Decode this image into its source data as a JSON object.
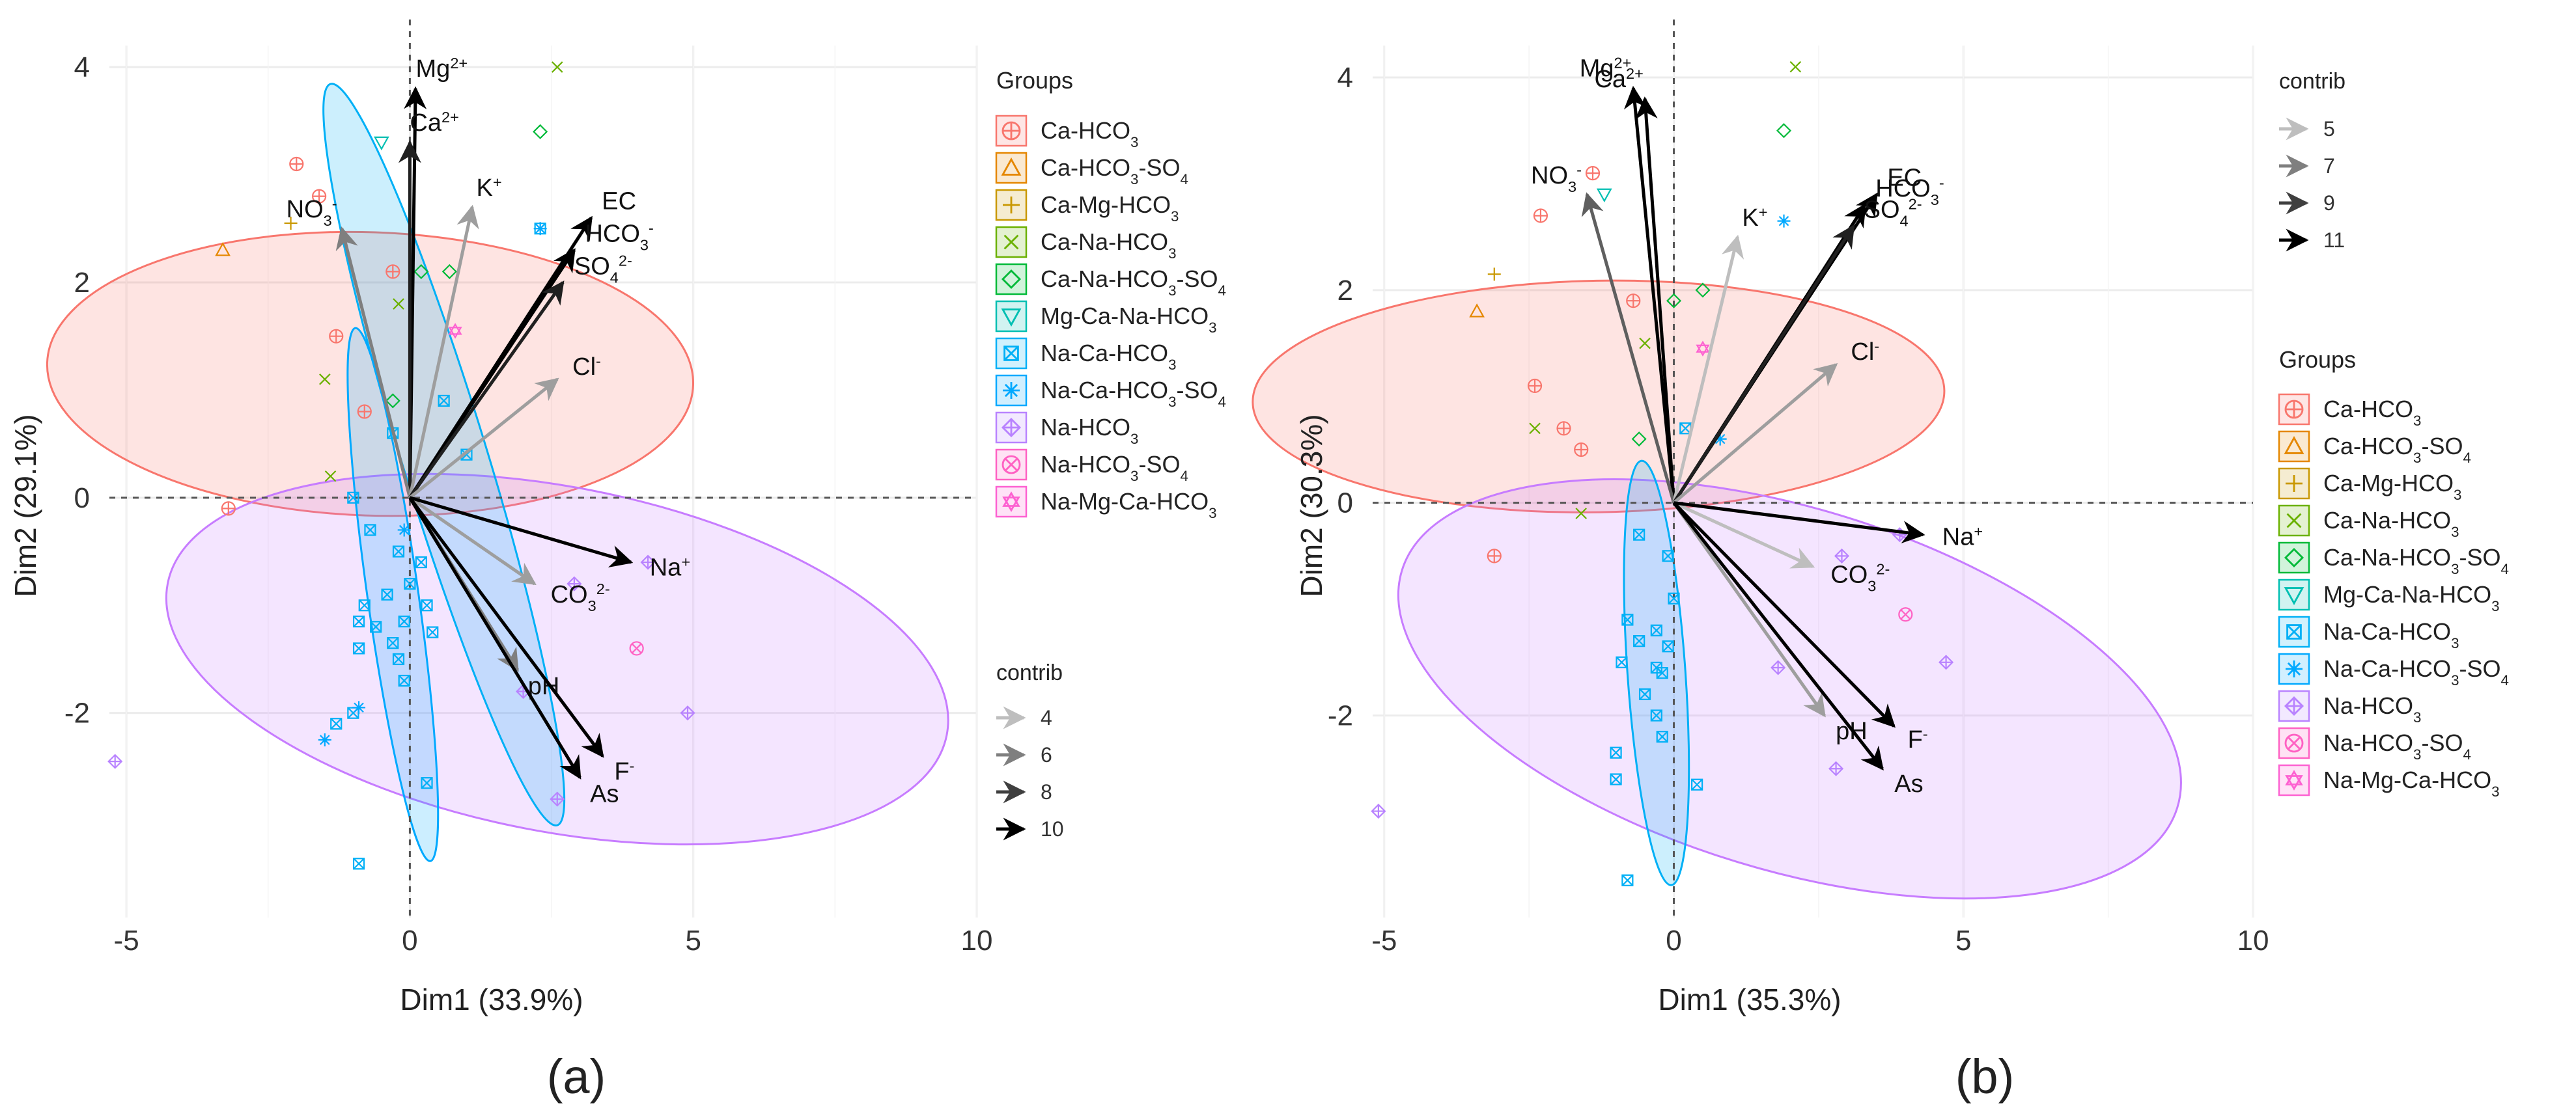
{
  "chart_data": [
    {
      "type": "scatter",
      "subtype": "pca-biplot",
      "panel_label": "(a)",
      "xlabel": "Dim1 (33.9%)",
      "ylabel": "Dim2 (29.1%)",
      "xlim": [
        -5.3,
        10
      ],
      "ylim": [
        -3.9,
        4.2
      ],
      "x_ticks": [
        "-5",
        "0",
        "5",
        "10"
      ],
      "y_ticks": [
        "-2",
        "0",
        "2",
        "4"
      ],
      "groups_title": "Groups",
      "contrib_title": "contrib",
      "contrib_levels": [
        "4",
        "6",
        "8",
        "10"
      ],
      "vectors": [
        {
          "label": "Mg2+",
          "x": 0.1,
          "y": 3.8,
          "contrib": 10
        },
        {
          "label": "Ca2+",
          "x": 0.0,
          "y": 3.3,
          "contrib": 9
        },
        {
          "label": "NO3-",
          "x": -1.2,
          "y": 2.5,
          "contrib": 6
        },
        {
          "label": "K+",
          "x": 1.1,
          "y": 2.7,
          "contrib": 5
        },
        {
          "label": "EC",
          "x": 3.2,
          "y": 2.6,
          "contrib": 10
        },
        {
          "label": "HCO3-",
          "x": 2.9,
          "y": 2.3,
          "contrib": 10
        },
        {
          "label": "SO42-",
          "x": 2.7,
          "y": 2.0,
          "contrib": 9
        },
        {
          "label": "Cl-",
          "x": 2.6,
          "y": 1.1,
          "contrib": 5
        },
        {
          "label": "CO32-",
          "x": 2.2,
          "y": -0.8,
          "contrib": 5
        },
        {
          "label": "Na+",
          "x": 3.9,
          "y": -0.6,
          "contrib": 10
        },
        {
          "label": "pH",
          "x": 1.9,
          "y": -1.6,
          "contrib": 6
        },
        {
          "label": "F-",
          "x": 3.4,
          "y": -2.4,
          "contrib": 10
        },
        {
          "label": "As",
          "x": 3.0,
          "y": -2.6,
          "contrib": 10
        }
      ],
      "ellipses": [
        {
          "group": "Ca-HCO3",
          "cx": -0.7,
          "cy": 1.15,
          "rx": 2.5,
          "ry": 3.0,
          "angle": -88
        },
        {
          "group": "Na-HCO3",
          "cx": 2.6,
          "cy": -1.5,
          "rx": 7.0,
          "ry": 1.6,
          "angle": 11
        },
        {
          "group": "Na-Ca-HCO3",
          "cx": 0.6,
          "cy": 0.4,
          "rx": 0.75,
          "ry": 3.6,
          "angle": -17
        },
        {
          "group": "Na-Ca-HCO3-SO4",
          "cx": -0.3,
          "cy": -0.9,
          "rx": 0.45,
          "ry": 2.5,
          "angle": -8
        }
      ],
      "points": [
        {
          "group": "Ca-HCO3",
          "x": -2.0,
          "y": 3.1
        },
        {
          "group": "Ca-HCO3",
          "x": -1.6,
          "y": 2.8
        },
        {
          "group": "Ca-HCO3",
          "x": -0.3,
          "y": 2.1
        },
        {
          "group": "Ca-HCO3",
          "x": -1.3,
          "y": 1.5
        },
        {
          "group": "Ca-HCO3",
          "x": -0.8,
          "y": 0.8
        },
        {
          "group": "Ca-HCO3",
          "x": -3.2,
          "y": -0.1
        },
        {
          "group": "Ca-HCO3-SO4",
          "x": -3.3,
          "y": 2.3
        },
        {
          "group": "Ca-Mg-HCO3",
          "x": -2.1,
          "y": 2.55
        },
        {
          "group": "Ca-Na-HCO3",
          "x": 2.6,
          "y": 4.0
        },
        {
          "group": "Ca-Na-HCO3",
          "x": -1.5,
          "y": 1.1
        },
        {
          "group": "Ca-Na-HCO3",
          "x": -1.4,
          "y": 0.2
        },
        {
          "group": "Ca-Na-HCO3",
          "x": -0.2,
          "y": 1.8
        },
        {
          "group": "Ca-Na-HCO3-SO4",
          "x": 2.3,
          "y": 3.4
        },
        {
          "group": "Ca-Na-HCO3-SO4",
          "x": 0.7,
          "y": 2.1
        },
        {
          "group": "Ca-Na-HCO3-SO4",
          "x": 0.2,
          "y": 2.1
        },
        {
          "group": "Ca-Na-HCO3-SO4",
          "x": -0.3,
          "y": 0.9
        },
        {
          "group": "Mg-Ca-Na-HCO3",
          "x": -0.5,
          "y": 3.3
        },
        {
          "group": "Na-Ca-HCO3",
          "x": 2.3,
          "y": 2.5
        },
        {
          "group": "Na-Ca-HCO3",
          "x": 0.6,
          "y": 0.9
        },
        {
          "group": "Na-Ca-HCO3",
          "x": 1.0,
          "y": 0.4
        },
        {
          "group": "Na-Ca-HCO3",
          "x": -0.3,
          "y": 0.6
        },
        {
          "group": "Na-Ca-HCO3",
          "x": -1.0,
          "y": 0.0
        },
        {
          "group": "Na-Ca-HCO3",
          "x": -0.7,
          "y": -0.3
        },
        {
          "group": "Na-Ca-HCO3",
          "x": -0.2,
          "y": -0.5
        },
        {
          "group": "Na-Ca-HCO3",
          "x": 0.2,
          "y": -0.6
        },
        {
          "group": "Na-Ca-HCO3",
          "x": 0.0,
          "y": -0.8
        },
        {
          "group": "Na-Ca-HCO3",
          "x": -0.4,
          "y": -0.9
        },
        {
          "group": "Na-Ca-HCO3",
          "x": 0.3,
          "y": -1.0
        },
        {
          "group": "Na-Ca-HCO3",
          "x": -0.8,
          "y": -1.0
        },
        {
          "group": "Na-Ca-HCO3",
          "x": -0.1,
          "y": -1.15
        },
        {
          "group": "Na-Ca-HCO3",
          "x": -0.6,
          "y": -1.2
        },
        {
          "group": "Na-Ca-HCO3",
          "x": 0.4,
          "y": -1.25
        },
        {
          "group": "Na-Ca-HCO3",
          "x": -0.3,
          "y": -1.35
        },
        {
          "group": "Na-Ca-HCO3",
          "x": -0.9,
          "y": -1.4
        },
        {
          "group": "Na-Ca-HCO3",
          "x": -0.2,
          "y": -1.5
        },
        {
          "group": "Na-Ca-HCO3",
          "x": -0.1,
          "y": -1.7
        },
        {
          "group": "Na-Ca-HCO3",
          "x": -1.0,
          "y": -2.0
        },
        {
          "group": "Na-Ca-HCO3",
          "x": -1.3,
          "y": -2.1
        },
        {
          "group": "Na-Ca-HCO3",
          "x": 0.3,
          "y": -2.65
        },
        {
          "group": "Na-Ca-HCO3",
          "x": -0.9,
          "y": -3.4
        },
        {
          "group": "Na-Ca-HCO3",
          "x": -0.9,
          "y": -1.15
        },
        {
          "group": "Na-Ca-HCO3-SO4",
          "x": 2.3,
          "y": 2.5
        },
        {
          "group": "Na-Ca-HCO3-SO4",
          "x": -0.1,
          "y": -0.3
        },
        {
          "group": "Na-Ca-HCO3-SO4",
          "x": -0.9,
          "y": -1.95
        },
        {
          "group": "Na-Ca-HCO3-SO4",
          "x": -1.5,
          "y": -2.25
        },
        {
          "group": "Na-HCO3",
          "x": 4.2,
          "y": -0.6
        },
        {
          "group": "Na-HCO3",
          "x": 2.9,
          "y": -0.8
        },
        {
          "group": "Na-HCO3",
          "x": 2.0,
          "y": -1.8
        },
        {
          "group": "Na-HCO3",
          "x": 4.9,
          "y": -2.0
        },
        {
          "group": "Na-HCO3",
          "x": 2.6,
          "y": -2.8
        },
        {
          "group": "Na-HCO3",
          "x": -5.2,
          "y": -2.45
        },
        {
          "group": "Na-HCO3-SO4",
          "x": 4.0,
          "y": -1.4
        },
        {
          "group": "Na-Mg-Ca-HCO3",
          "x": 0.8,
          "y": 1.55
        }
      ]
    },
    {
      "type": "scatter",
      "subtype": "pca-biplot",
      "panel_label": "(b)",
      "xlabel": "Dim1 (35.3%)",
      "ylabel": "Dim2 (30.3%)",
      "xlim": [
        -5.2,
        10
      ],
      "ylim": [
        -3.9,
        4.3
      ],
      "x_ticks": [
        "-5",
        "0",
        "5",
        "10"
      ],
      "y_ticks": [
        "-2",
        "0",
        "2",
        "4"
      ],
      "groups_title": "Groups",
      "contrib_title": "contrib",
      "contrib_levels": [
        "5",
        "7",
        "9",
        "11"
      ],
      "vectors": [
        {
          "label": "Mg2+",
          "x": -0.7,
          "y": 3.9,
          "contrib": 11
        },
        {
          "label": "Ca2+",
          "x": -0.5,
          "y": 3.8,
          "contrib": 11
        },
        {
          "label": "NO3-",
          "x": -1.5,
          "y": 2.9,
          "contrib": 8
        },
        {
          "label": "K+",
          "x": 1.1,
          "y": 2.5,
          "contrib": 5
        },
        {
          "label": "EC",
          "x": 3.5,
          "y": 2.9,
          "contrib": 11
        },
        {
          "label": "HCO3-",
          "x": 3.3,
          "y": 2.8,
          "contrib": 11
        },
        {
          "label": "SO42-",
          "x": 3.1,
          "y": 2.6,
          "contrib": 10
        },
        {
          "label": "Cl-",
          "x": 2.8,
          "y": 1.3,
          "contrib": 6
        },
        {
          "label": "CO32-",
          "x": 2.4,
          "y": -0.6,
          "contrib": 5
        },
        {
          "label": "Na+",
          "x": 4.3,
          "y": -0.3,
          "contrib": 11
        },
        {
          "label": "pH",
          "x": 2.6,
          "y": -2.0,
          "contrib": 6
        },
        {
          "label": "F-",
          "x": 3.8,
          "y": -2.1,
          "contrib": 11
        },
        {
          "label": "As",
          "x": 3.6,
          "y": -2.5,
          "contrib": 11
        }
      ],
      "ellipses": [
        {
          "group": "Ca-HCO3",
          "cx": -1.3,
          "cy": 1.0,
          "rx": 2.0,
          "ry": 3.25,
          "angle": -91
        },
        {
          "group": "Na-HCO3",
          "cx": 2.0,
          "cy": -1.75,
          "rx": 7.0,
          "ry": 1.7,
          "angle": 17
        },
        {
          "group": "Na-Ca-HCO3",
          "cx": -0.3,
          "cy": -1.6,
          "rx": 0.5,
          "ry": 2.0,
          "angle": -4
        }
      ],
      "points": [
        {
          "group": "Ca-HCO3",
          "x": -1.4,
          "y": 3.1
        },
        {
          "group": "Ca-HCO3",
          "x": -2.3,
          "y": 2.7
        },
        {
          "group": "Ca-HCO3",
          "x": -0.7,
          "y": 1.9
        },
        {
          "group": "Ca-HCO3",
          "x": -2.4,
          "y": 1.1
        },
        {
          "group": "Ca-HCO3",
          "x": -1.9,
          "y": 0.7
        },
        {
          "group": "Ca-HCO3",
          "x": -1.6,
          "y": 0.5
        },
        {
          "group": "Ca-HCO3",
          "x": -3.1,
          "y": -0.5
        },
        {
          "group": "Ca-HCO3-SO4",
          "x": -3.4,
          "y": 1.8
        },
        {
          "group": "Ca-Mg-HCO3",
          "x": -3.1,
          "y": 2.15
        },
        {
          "group": "Ca-Na-HCO3",
          "x": 2.1,
          "y": 4.1
        },
        {
          "group": "Ca-Na-HCO3",
          "x": -0.5,
          "y": 1.5
        },
        {
          "group": "Ca-Na-HCO3",
          "x": -2.4,
          "y": 0.7
        },
        {
          "group": "Ca-Na-HCO3",
          "x": -1.6,
          "y": -0.1
        },
        {
          "group": "Ca-Na-HCO3-SO4",
          "x": 1.9,
          "y": 3.5
        },
        {
          "group": "Ca-Na-HCO3-SO4",
          "x": 0.5,
          "y": 2.0
        },
        {
          "group": "Ca-Na-HCO3-SO4",
          "x": 0.0,
          "y": 1.9
        },
        {
          "group": "Ca-Na-HCO3-SO4",
          "x": -0.6,
          "y": 0.6
        },
        {
          "group": "Mg-Ca-Na-HCO3",
          "x": -1.2,
          "y": 2.9
        },
        {
          "group": "Na-Ca-HCO3",
          "x": 0.2,
          "y": 0.7
        },
        {
          "group": "Na-Ca-HCO3",
          "x": -0.6,
          "y": -0.3
        },
        {
          "group": "Na-Ca-HCO3",
          "x": -0.1,
          "y": -0.5
        },
        {
          "group": "Na-Ca-HCO3",
          "x": 0.0,
          "y": -0.9
        },
        {
          "group": "Na-Ca-HCO3",
          "x": -0.8,
          "y": -1.1
        },
        {
          "group": "Na-Ca-HCO3",
          "x": -0.3,
          "y": -1.2
        },
        {
          "group": "Na-Ca-HCO3",
          "x": -0.6,
          "y": -1.3
        },
        {
          "group": "Na-Ca-HCO3",
          "x": -0.1,
          "y": -1.35
        },
        {
          "group": "Na-Ca-HCO3",
          "x": -0.9,
          "y": -1.5
        },
        {
          "group": "Na-Ca-HCO3",
          "x": -1.0,
          "y": -2.35
        },
        {
          "group": "Na-Ca-HCO3",
          "x": -1.0,
          "y": -2.6
        },
        {
          "group": "Na-Ca-HCO3",
          "x": 0.4,
          "y": -2.65
        },
        {
          "group": "Na-Ca-HCO3",
          "x": -0.8,
          "y": -3.55
        },
        {
          "group": "Na-Ca-HCO3",
          "x": -0.2,
          "y": -1.6
        },
        {
          "group": "Na-Ca-HCO3",
          "x": -0.3,
          "y": -2.0
        },
        {
          "group": "Na-Ca-HCO3",
          "x": -0.2,
          "y": -2.2
        },
        {
          "group": "Na-Ca-HCO3",
          "x": -0.5,
          "y": -1.8
        },
        {
          "group": "Na-Ca-HCO3",
          "x": -0.3,
          "y": -1.55
        },
        {
          "group": "Na-Ca-HCO3-SO4",
          "x": 1.9,
          "y": 2.65
        },
        {
          "group": "Na-Ca-HCO3-SO4",
          "x": 0.8,
          "y": 0.6
        },
        {
          "group": "Na-HCO3",
          "x": 3.9,
          "y": -0.3
        },
        {
          "group": "Na-HCO3",
          "x": 2.9,
          "y": -0.5
        },
        {
          "group": "Na-HCO3",
          "x": 1.8,
          "y": -1.55
        },
        {
          "group": "Na-HCO3",
          "x": 4.7,
          "y": -1.5
        },
        {
          "group": "Na-HCO3",
          "x": 2.8,
          "y": -2.5
        },
        {
          "group": "Na-HCO3",
          "x": -5.1,
          "y": -2.9
        },
        {
          "group": "Na-HCO3-SO4",
          "x": 4.0,
          "y": -1.05
        },
        {
          "group": "Na-Mg-Ca-HCO3",
          "x": 0.5,
          "y": 1.45
        }
      ]
    }
  ],
  "groups": [
    {
      "id": "Ca-HCO3",
      "label": "Ca-HCO3",
      "color": "#F8766D",
      "shape": "circle-plus"
    },
    {
      "id": "Ca-HCO3-SO4",
      "label": "Ca-HCO3-SO4",
      "color": "#E58700",
      "shape": "triangle"
    },
    {
      "id": "Ca-Mg-HCO3",
      "label": "Ca-Mg-HCO3",
      "color": "#C99800",
      "shape": "plus"
    },
    {
      "id": "Ca-Na-HCO3",
      "label": "Ca-Na-HCO3",
      "color": "#6BB100",
      "shape": "cross"
    },
    {
      "id": "Ca-Na-HCO3-SO4",
      "label": "Ca-Na-HCO3-SO4",
      "color": "#00BA38",
      "shape": "diamond"
    },
    {
      "id": "Mg-Ca-Na-HCO3",
      "label": "Mg-Ca-Na-HCO3",
      "color": "#00BFB2",
      "shape": "triangle-down"
    },
    {
      "id": "Na-Ca-HCO3",
      "label": "Na-Ca-HCO3",
      "color": "#00B0F6",
      "shape": "square-x"
    },
    {
      "id": "Na-Ca-HCO3-SO4",
      "label": "Na-Ca-HCO3-SO4",
      "color": "#00A9FF",
      "shape": "asterisk"
    },
    {
      "id": "Na-HCO3",
      "label": "Na-HCO3",
      "color": "#B983FF",
      "shape": "diamond-plus"
    },
    {
      "id": "Na-HCO3-SO4",
      "label": "Na-HCO3-SO4",
      "color": "#FF61C3",
      "shape": "circle-cross"
    },
    {
      "id": "Na-Mg-Ca-HCO3",
      "label": "Na-Mg-Ca-HCO3",
      "color": "#FD61D1",
      "shape": "star"
    }
  ],
  "colors": {
    "ellipse_fill_ca": "#F8766D",
    "ellipse_fill_na": "#C77CFF",
    "ellipse_fill_naca": "#00B0F6",
    "arrow_dark": "#000000",
    "arrow_light": "#BEBEBE",
    "grid": "#EBEBEB",
    "axis_text": "#4D4D4D"
  }
}
